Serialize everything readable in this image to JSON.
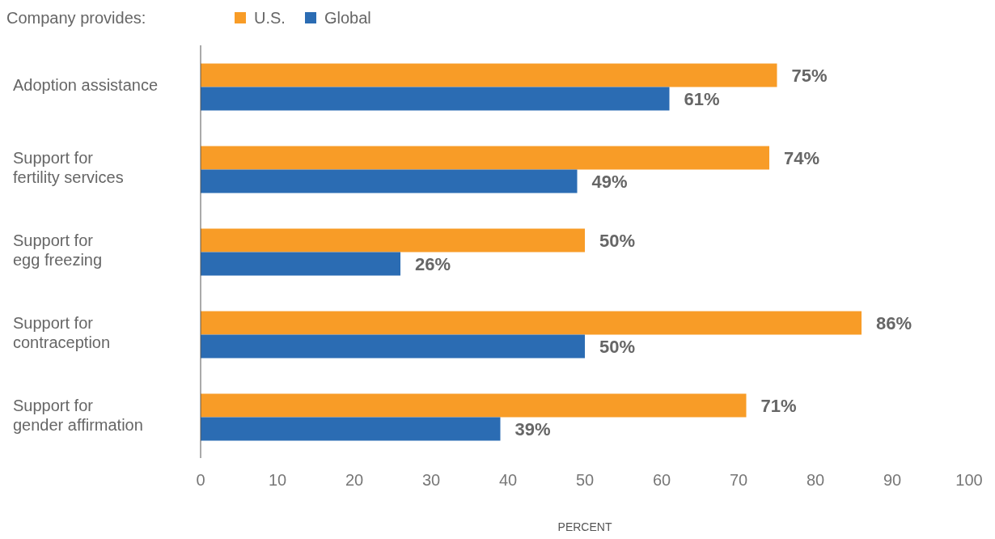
{
  "chart_data": {
    "type": "bar",
    "orientation": "horizontal",
    "legend_title": "Company provides:",
    "legend": "top left",
    "xlabel": "PERCENT",
    "categories": [
      "Adoption assistance",
      "Support for\nfertility services",
      "Support for\negg freezing",
      "Support for\ncontraception",
      "Support for\ngender affirmation"
    ],
    "series": [
      {
        "name": "U.S.",
        "color": "#f89c27",
        "values": [
          75,
          74,
          50,
          86,
          71
        ],
        "value_labels": [
          "75%",
          "74%",
          "50%",
          "86%",
          "71%"
        ]
      },
      {
        "name": "Global",
        "color": "#2b6cb3",
        "values": [
          61,
          49,
          26,
          50,
          39
        ],
        "value_labels": [
          "61%",
          "49%",
          "26%",
          "50%",
          "39%"
        ]
      }
    ],
    "xlim": [
      0,
      100
    ],
    "xticks": [
      0,
      10,
      20,
      30,
      40,
      50,
      60,
      70,
      80,
      90,
      100
    ],
    "grid": false
  }
}
